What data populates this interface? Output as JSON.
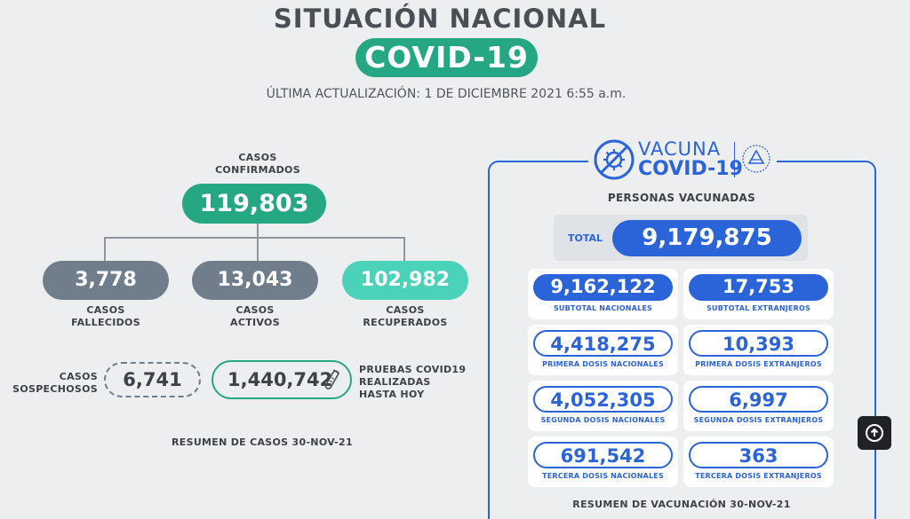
{
  "header": {
    "title": "SITUACIÓN NACIONAL",
    "subtitle": "COVID-19",
    "update": "ÚLTIMA ACTUALIZACIÓN: 1 DE DICIEMBRE 2021 6:55 a.m."
  },
  "cases": {
    "confirmed_label_1": "CASOS",
    "confirmed_label_2": "CONFIRMADOS",
    "confirmed": "119,803",
    "deaths": "3,778",
    "deaths_label_1": "CASOS",
    "deaths_label_2": "FALLECIDOS",
    "active": "13,043",
    "active_label_1": "CASOS",
    "active_label_2": "ACTIVOS",
    "recovered": "102,982",
    "recovered_label_1": "CASOS",
    "recovered_label_2": "RECUPERADOS",
    "suspected_label_1": "CASOS",
    "suspected_label_2": "SOSPECHOSOS",
    "suspected": "6,741",
    "tests": "1,440,742",
    "tests_label_1": "PRUEBAS COVID19",
    "tests_label_2": "REALIZADAS",
    "tests_label_3": "HASTA HOY",
    "summary": "RESUMEN DE CASOS 30-NOV-21"
  },
  "vaccination": {
    "logo_word1": "VACUNA",
    "logo_word2": "COVID-19",
    "section_title": "PERSONAS VACUNADAS",
    "total_label": "TOTAL",
    "total": "9,179,875",
    "cards": [
      {
        "value": "9,162,122",
        "label": "SUBTOTAL NACIONALES"
      },
      {
        "value": "17,753",
        "label": "SUBTOTAL EXTRANJEROS"
      },
      {
        "value": "4,418,275",
        "label": "PRIMERA DOSIS NACIONALES"
      },
      {
        "value": "10,393",
        "label": "PRIMERA DOSIS EXTRANJEROS"
      },
      {
        "value": "4,052,305",
        "label": "SEGUNDA DOSIS NACIONALES"
      },
      {
        "value": "6,997",
        "label": "SEGUNDA DOSIS EXTRANJEROS"
      },
      {
        "value": "691,542",
        "label": "TERCERA DOSIS NACIONALES"
      },
      {
        "value": "363",
        "label": "TERCERA DOSIS EXTRANJEROS"
      }
    ],
    "summary": "RESUMEN DE VACUNACIÓN 30-NOV-21"
  },
  "icons": {
    "scroll_top": "arrow-up-circle-icon",
    "test_tube": "test-tube-icon",
    "virus": "virus-crossed-icon",
    "seal": "national-seal-icon"
  },
  "colors": {
    "green": "#26a784",
    "teal": "#4ad3b8",
    "gray": "#6f7e8a",
    "blue": "#2b63d9"
  }
}
